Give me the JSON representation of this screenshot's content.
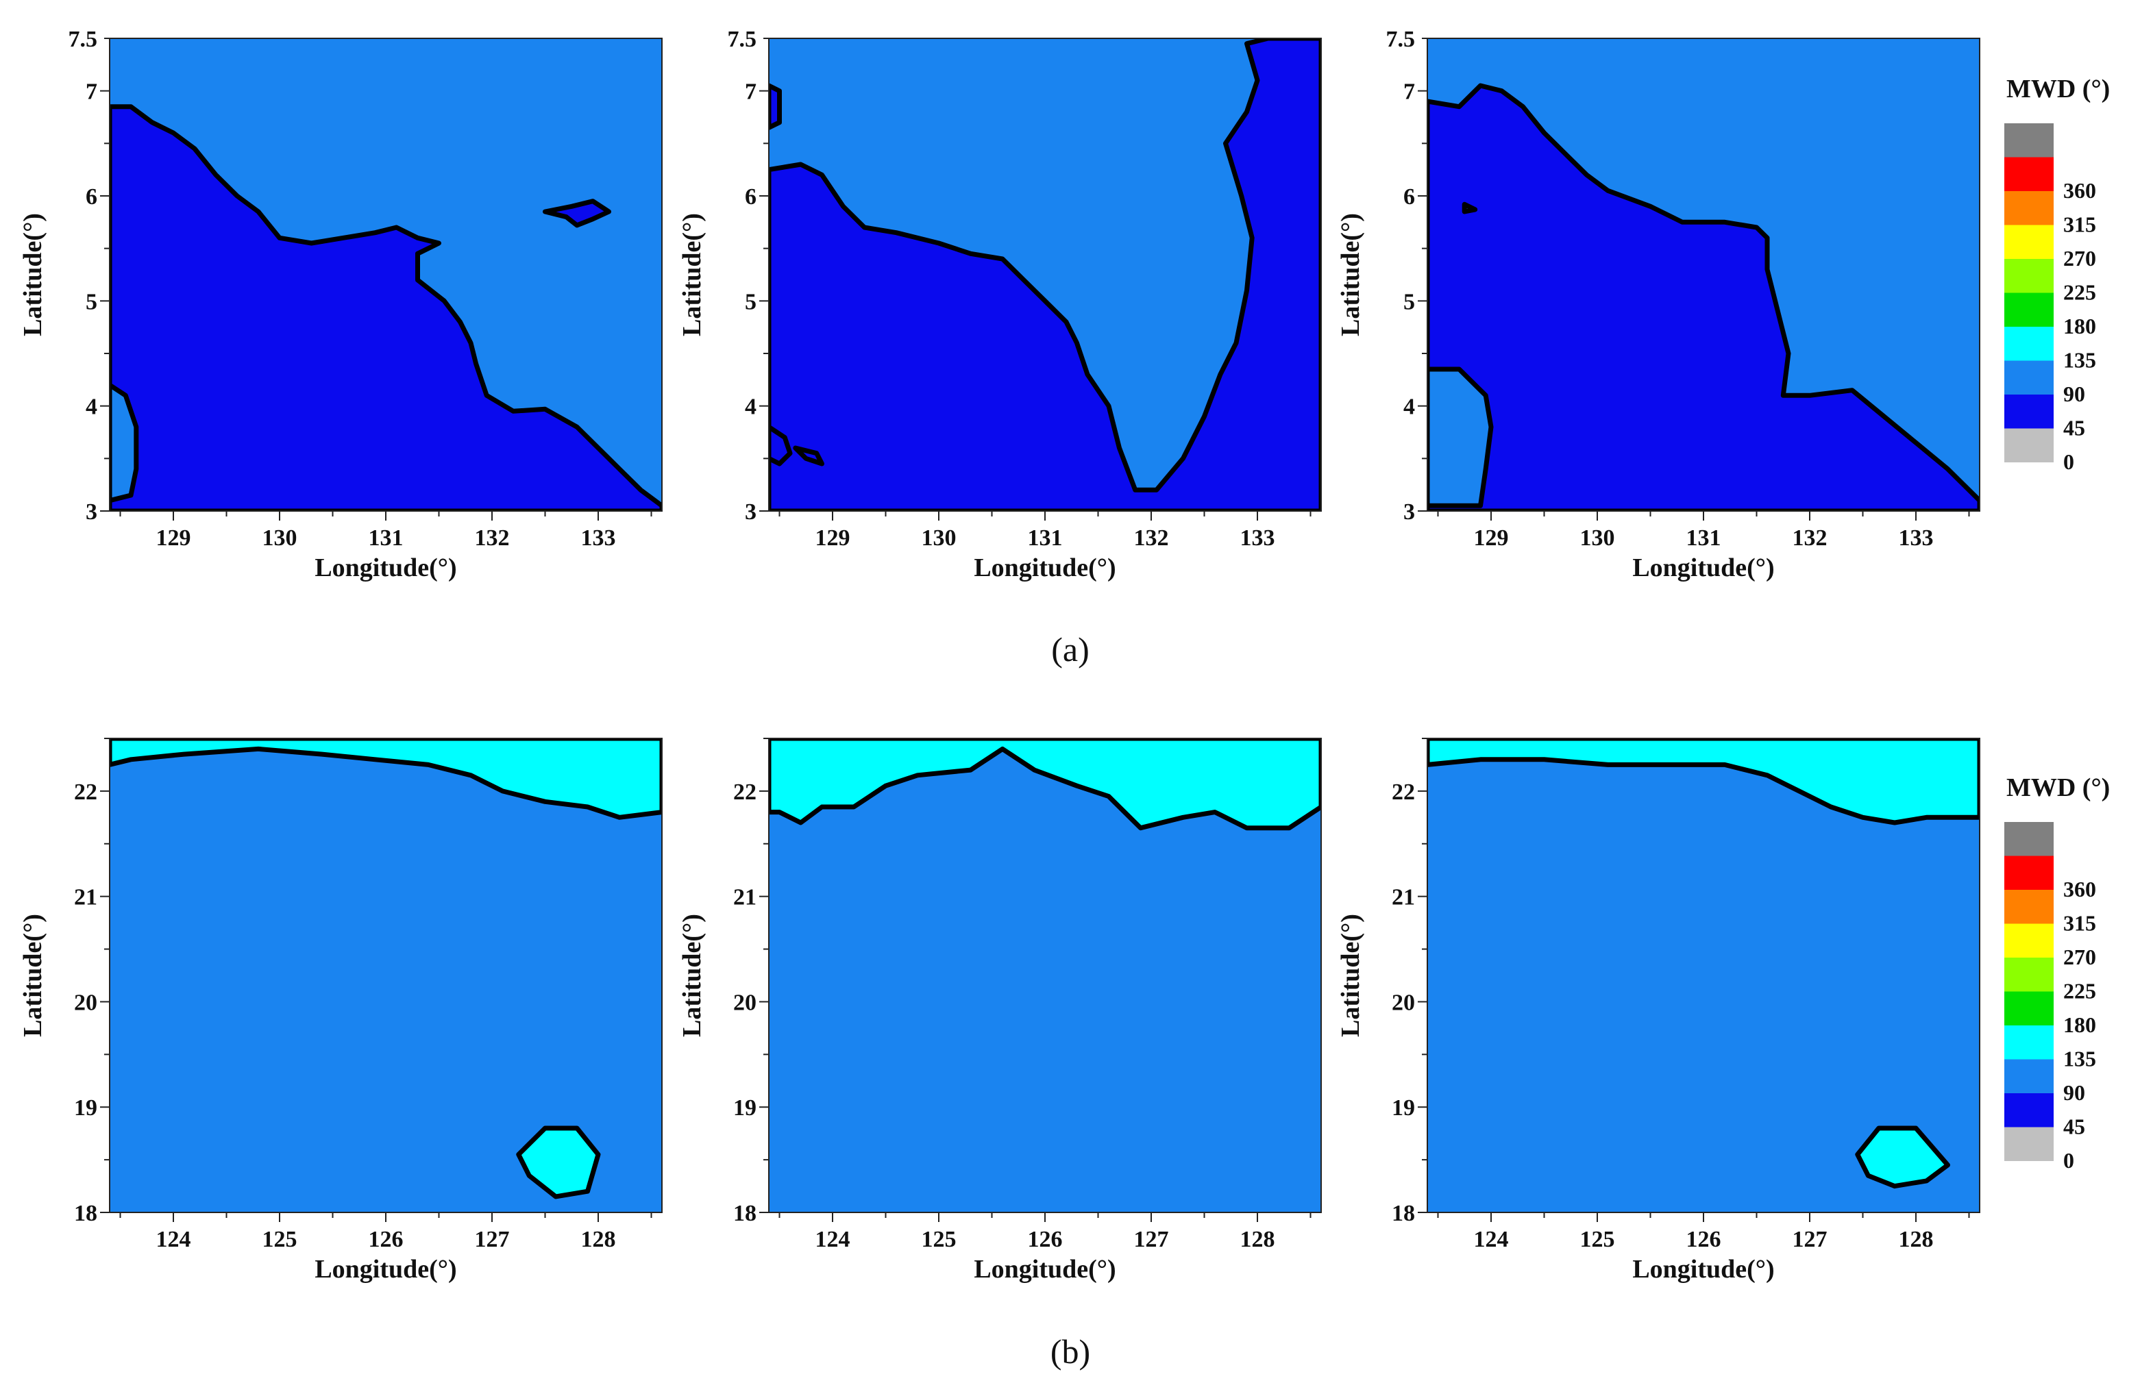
{
  "colors": {
    "bin_0_45": "#0a0aee",
    "bin_45_90": "#1a84f0",
    "bin_90_135": "#00ffff",
    "outline": "#000000"
  },
  "legend": {
    "title": "MWD (°)",
    "bins": [
      {
        "color": "#808080"
      },
      {
        "color": "#ff0000",
        "label": "360"
      },
      {
        "color": "#ff8000",
        "label": "315"
      },
      {
        "color": "#ffff00",
        "label": "270"
      },
      {
        "color": "#8cff00",
        "label": "225"
      },
      {
        "color": "#00e000",
        "label": "180"
      },
      {
        "color": "#00ffff",
        "label": "135"
      },
      {
        "color": "#1a84f0",
        "label": "90"
      },
      {
        "color": "#0a0aee",
        "label": "45"
      },
      {
        "color": "#c0c0c0",
        "label": "0"
      }
    ]
  },
  "captions": [
    "(a)",
    "(b)"
  ],
  "chart_data": [
    {
      "type": "heatmap",
      "row": 0,
      "panel": 0,
      "xlabel": "Longitude(°)",
      "ylabel": "Latitude(°)",
      "xlim": [
        128.4,
        133.6
      ],
      "ylim": [
        3,
        7.5
      ],
      "xticks": [
        129,
        130,
        131,
        132,
        133
      ],
      "yticks": [
        3,
        4,
        5,
        6,
        7,
        7.5
      ],
      "background_bin": "45-90",
      "regions": [
        {
          "bin": "0-45",
          "points": [
            [
              128.4,
              6.85
            ],
            [
              128.6,
              6.85
            ],
            [
              128.8,
              6.7
            ],
            [
              129.0,
              6.6
            ],
            [
              129.2,
              6.45
            ],
            [
              129.4,
              6.2
            ],
            [
              129.6,
              6.0
            ],
            [
              129.8,
              5.85
            ],
            [
              130.0,
              5.6
            ],
            [
              130.3,
              5.55
            ],
            [
              130.6,
              5.6
            ],
            [
              130.9,
              5.65
            ],
            [
              131.1,
              5.7
            ],
            [
              131.3,
              5.6
            ],
            [
              131.5,
              5.55
            ],
            [
              131.3,
              5.45
            ],
            [
              131.3,
              5.2
            ],
            [
              131.55,
              5.0
            ],
            [
              131.7,
              4.8
            ],
            [
              131.8,
              4.6
            ],
            [
              131.85,
              4.4
            ],
            [
              131.95,
              4.1
            ],
            [
              132.2,
              3.95
            ],
            [
              132.5,
              3.97
            ],
            [
              132.8,
              3.8
            ],
            [
              133.0,
              3.6
            ],
            [
              133.2,
              3.4
            ],
            [
              133.4,
              3.2
            ],
            [
              133.6,
              3.05
            ],
            [
              133.6,
              3.0
            ],
            [
              128.4,
              3.0
            ]
          ]
        },
        {
          "bin": "45-90",
          "points": [
            [
              128.4,
              4.2
            ],
            [
              128.55,
              4.1
            ],
            [
              128.65,
              3.8
            ],
            [
              128.65,
              3.4
            ],
            [
              128.6,
              3.15
            ],
            [
              128.4,
              3.1
            ]
          ]
        },
        {
          "bin": "0-45",
          "points": [
            [
              132.5,
              5.85
            ],
            [
              132.7,
              5.8
            ],
            [
              132.8,
              5.72
            ],
            [
              132.95,
              5.78
            ],
            [
              133.1,
              5.85
            ],
            [
              132.95,
              5.95
            ],
            [
              132.75,
              5.9
            ]
          ]
        }
      ]
    },
    {
      "type": "heatmap",
      "row": 0,
      "panel": 1,
      "xlabel": "Longitude(°)",
      "ylabel": "Latitude(°)",
      "xlim": [
        128.4,
        133.6
      ],
      "ylim": [
        3,
        7.5
      ],
      "xticks": [
        129,
        130,
        131,
        132,
        133
      ],
      "yticks": [
        3,
        4,
        5,
        6,
        7,
        7.5
      ],
      "background_bin": "45-90",
      "regions": [
        {
          "bin": "0-45",
          "points": [
            [
              128.4,
              6.25
            ],
            [
              128.7,
              6.3
            ],
            [
              128.9,
              6.2
            ],
            [
              129.1,
              5.9
            ],
            [
              129.3,
              5.7
            ],
            [
              129.6,
              5.65
            ],
            [
              130.0,
              5.55
            ],
            [
              130.3,
              5.45
            ],
            [
              130.6,
              5.4
            ],
            [
              130.8,
              5.2
            ],
            [
              131.0,
              5.0
            ],
            [
              131.2,
              4.8
            ],
            [
              131.3,
              4.6
            ],
            [
              131.4,
              4.3
            ],
            [
              131.6,
              4.0
            ],
            [
              131.7,
              3.6
            ],
            [
              131.85,
              3.2
            ],
            [
              132.05,
              3.2
            ],
            [
              132.3,
              3.5
            ],
            [
              132.5,
              3.9
            ],
            [
              132.65,
              4.3
            ],
            [
              132.8,
              4.6
            ],
            [
              132.9,
              5.1
            ],
            [
              132.95,
              5.6
            ],
            [
              132.85,
              6.0
            ],
            [
              132.7,
              6.5
            ],
            [
              132.9,
              6.8
            ],
            [
              133.0,
              7.1
            ],
            [
              132.9,
              7.45
            ],
            [
              133.1,
              7.5
            ],
            [
              133.6,
              7.5
            ],
            [
              133.6,
              3.0
            ],
            [
              128.4,
              3.0
            ]
          ]
        },
        {
          "bin": "0-45",
          "points": [
            [
              128.4,
              7.05
            ],
            [
              128.5,
              7.0
            ],
            [
              128.5,
              6.7
            ],
            [
              128.4,
              6.65
            ]
          ]
        },
        {
          "bin": "0-45",
          "points": [
            [
              128.4,
              3.8
            ],
            [
              128.55,
              3.7
            ],
            [
              128.6,
              3.55
            ],
            [
              128.5,
              3.45
            ],
            [
              128.4,
              3.5
            ]
          ]
        },
        {
          "bin": "0-45",
          "points": [
            [
              128.65,
              3.6
            ],
            [
              128.85,
              3.55
            ],
            [
              128.9,
              3.45
            ],
            [
              128.75,
              3.5
            ]
          ]
        }
      ]
    },
    {
      "type": "heatmap",
      "row": 0,
      "panel": 2,
      "xlabel": "Longitude(°)",
      "ylabel": "Latitude(°)",
      "xlim": [
        128.4,
        133.6
      ],
      "ylim": [
        3,
        7.5
      ],
      "xticks": [
        129,
        130,
        131,
        132,
        133
      ],
      "yticks": [
        3,
        4,
        5,
        6,
        7,
        7.5
      ],
      "background_bin": "45-90",
      "regions": [
        {
          "bin": "0-45",
          "points": [
            [
              128.4,
              6.9
            ],
            [
              128.7,
              6.85
            ],
            [
              128.9,
              7.05
            ],
            [
              129.1,
              7.0
            ],
            [
              129.3,
              6.85
            ],
            [
              129.5,
              6.6
            ],
            [
              129.7,
              6.4
            ],
            [
              129.9,
              6.2
            ],
            [
              130.1,
              6.05
            ],
            [
              130.5,
              5.9
            ],
            [
              130.8,
              5.75
            ],
            [
              131.2,
              5.75
            ],
            [
              131.5,
              5.7
            ],
            [
              131.6,
              5.6
            ],
            [
              131.6,
              5.3
            ],
            [
              131.7,
              4.9
            ],
            [
              131.8,
              4.5
            ],
            [
              131.75,
              4.1
            ],
            [
              132.0,
              4.1
            ],
            [
              132.4,
              4.15
            ],
            [
              132.7,
              3.9
            ],
            [
              133.0,
              3.65
            ],
            [
              133.3,
              3.4
            ],
            [
              133.6,
              3.1
            ],
            [
              133.6,
              3.0
            ],
            [
              128.4,
              3.0
            ]
          ]
        },
        {
          "bin": "45-90",
          "points": [
            [
              128.4,
              4.35
            ],
            [
              128.7,
              4.35
            ],
            [
              128.95,
              4.1
            ],
            [
              129.0,
              3.8
            ],
            [
              128.95,
              3.4
            ],
            [
              128.9,
              3.05
            ],
            [
              128.4,
              3.05
            ]
          ]
        },
        {
          "bin": "45-90",
          "points": [
            [
              128.75,
              5.92
            ],
            [
              128.85,
              5.87
            ],
            [
              128.75,
              5.85
            ]
          ]
        }
      ]
    },
    {
      "type": "heatmap",
      "row": 1,
      "panel": 0,
      "xlabel": "Longitude(°)",
      "ylabel": "Latitude(°)",
      "xlim": [
        123.4,
        128.6
      ],
      "ylim": [
        18,
        22.5
      ],
      "xticks": [
        124,
        125,
        126,
        127,
        128
      ],
      "yticks": [
        18,
        19,
        20,
        21,
        22
      ],
      "background_bin": "45-90",
      "regions": [
        {
          "bin": "90-135",
          "points": [
            [
              123.4,
              22.5
            ],
            [
              128.6,
              22.5
            ],
            [
              128.6,
              21.8
            ],
            [
              128.2,
              21.75
            ],
            [
              127.9,
              21.85
            ],
            [
              127.5,
              21.9
            ],
            [
              127.1,
              22.0
            ],
            [
              126.8,
              22.15
            ],
            [
              126.4,
              22.25
            ],
            [
              125.9,
              22.3
            ],
            [
              125.4,
              22.35
            ],
            [
              124.8,
              22.4
            ],
            [
              124.1,
              22.35
            ],
            [
              123.6,
              22.3
            ],
            [
              123.4,
              22.25
            ]
          ]
        },
        {
          "bin": "90-135",
          "points": [
            [
              127.25,
              18.55
            ],
            [
              127.5,
              18.8
            ],
            [
              127.8,
              18.8
            ],
            [
              128.0,
              18.55
            ],
            [
              127.9,
              18.2
            ],
            [
              127.6,
              18.15
            ],
            [
              127.35,
              18.35
            ]
          ]
        }
      ]
    },
    {
      "type": "heatmap",
      "row": 1,
      "panel": 1,
      "xlabel": "Longitude(°)",
      "ylabel": "Latitude(°)",
      "xlim": [
        123.4,
        128.6
      ],
      "ylim": [
        18,
        22.5
      ],
      "xticks": [
        124,
        125,
        126,
        127,
        128
      ],
      "yticks": [
        18,
        19,
        20,
        21,
        22
      ],
      "background_bin": "45-90",
      "regions": [
        {
          "bin": "90-135",
          "points": [
            [
              123.4,
              22.5
            ],
            [
              128.6,
              22.5
            ],
            [
              128.6,
              21.85
            ],
            [
              128.3,
              21.65
            ],
            [
              127.9,
              21.65
            ],
            [
              127.6,
              21.8
            ],
            [
              127.3,
              21.75
            ],
            [
              126.9,
              21.65
            ],
            [
              126.6,
              21.95
            ],
            [
              126.3,
              22.05
            ],
            [
              125.9,
              22.2
            ],
            [
              125.6,
              22.4
            ],
            [
              125.3,
              22.2
            ],
            [
              124.8,
              22.15
            ],
            [
              124.5,
              22.05
            ],
            [
              124.2,
              21.85
            ],
            [
              123.9,
              21.85
            ],
            [
              123.7,
              21.7
            ],
            [
              123.5,
              21.8
            ],
            [
              123.4,
              21.8
            ]
          ]
        }
      ]
    },
    {
      "type": "heatmap",
      "row": 1,
      "panel": 2,
      "xlabel": "Longitude(°)",
      "ylabel": "Latitude(°)",
      "xlim": [
        123.4,
        128.6
      ],
      "ylim": [
        18,
        22.5
      ],
      "xticks": [
        124,
        125,
        126,
        127,
        128
      ],
      "yticks": [
        18,
        19,
        20,
        21,
        22
      ],
      "background_bin": "45-90",
      "regions": [
        {
          "bin": "90-135",
          "points": [
            [
              123.4,
              22.5
            ],
            [
              128.6,
              22.5
            ],
            [
              128.6,
              21.75
            ],
            [
              128.1,
              21.75
            ],
            [
              127.8,
              21.7
            ],
            [
              127.5,
              21.75
            ],
            [
              127.2,
              21.85
            ],
            [
              126.9,
              22.0
            ],
            [
              126.6,
              22.15
            ],
            [
              126.2,
              22.25
            ],
            [
              125.6,
              22.25
            ],
            [
              125.1,
              22.25
            ],
            [
              124.5,
              22.3
            ],
            [
              123.9,
              22.3
            ],
            [
              123.4,
              22.25
            ]
          ]
        },
        {
          "bin": "90-135",
          "points": [
            [
              127.45,
              18.55
            ],
            [
              127.65,
              18.8
            ],
            [
              128.0,
              18.8
            ],
            [
              128.3,
              18.45
            ],
            [
              128.1,
              18.3
            ],
            [
              127.8,
              18.25
            ],
            [
              127.55,
              18.35
            ]
          ]
        }
      ]
    }
  ]
}
